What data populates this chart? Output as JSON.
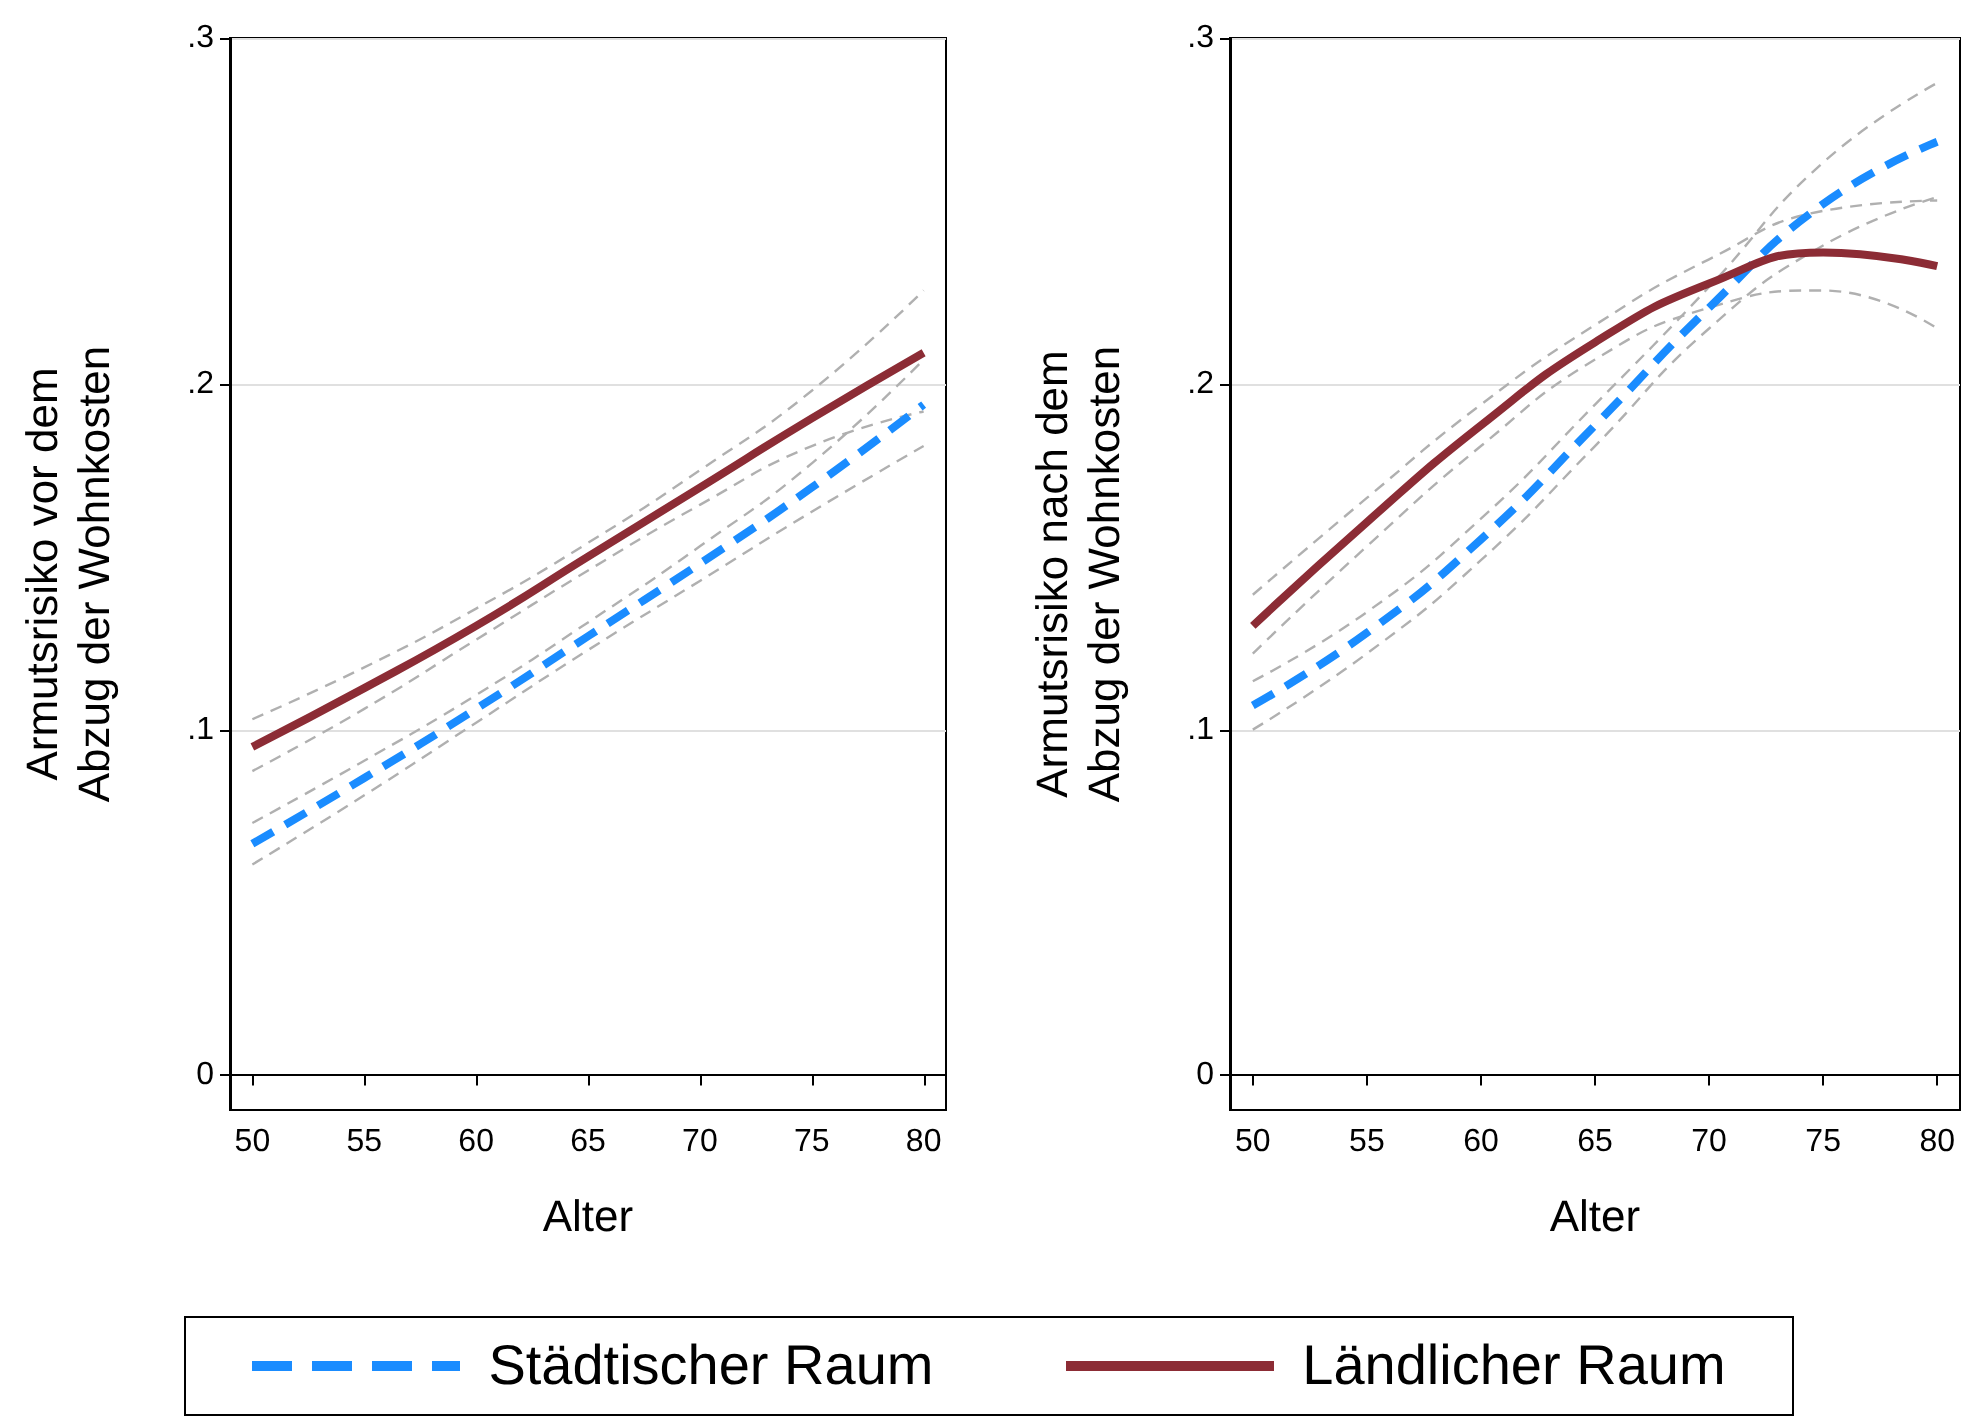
{
  "chart_data": [
    {
      "type": "line",
      "xlabel": "Alter",
      "ylabel": "Armutsrisiko vor dem\nAbzug der Wohnkosten",
      "x": [
        50,
        55,
        60,
        65,
        70,
        75,
        80
      ],
      "xlim": [
        49,
        81
      ],
      "xticks": [
        50,
        55,
        60,
        65,
        70,
        75,
        80
      ],
      "ylim": [
        -0.01,
        0.3
      ],
      "yticks": [
        0,
        {
          "value": 0.1,
          "label": ".1"
        },
        {
          "value": 0.2,
          "label": ".2"
        },
        {
          "value": 0.3,
          "label": ".3"
        }
      ],
      "grid": "y",
      "legend": "bottom",
      "series": [
        {
          "color": "#b0b0b0",
          "line_style": "dashed",
          "values": [
            0.061,
            0.081,
            0.102,
            0.123,
            0.143,
            0.163,
            0.182
          ]
        },
        {
          "color": "#b0b0b0",
          "line_style": "dashed",
          "values": [
            0.073,
            0.091,
            0.11,
            0.131,
            0.153,
            0.177,
            0.207
          ]
        },
        {
          "color": "#b0b0b0",
          "line_style": "dashed",
          "values": [
            0.088,
            0.106,
            0.126,
            0.146,
            0.165,
            0.182,
            0.192
          ]
        },
        {
          "color": "#b0b0b0",
          "line_style": "dashed",
          "values": [
            0.103,
            0.118,
            0.135,
            0.154,
            0.175,
            0.198,
            0.227
          ]
        },
        {
          "name": "Städtischer Raum",
          "color": "#1a8cff",
          "line_style": "dashed",
          "values": [
            0.067,
            0.086,
            0.106,
            0.127,
            0.148,
            0.17,
            0.194
          ]
        },
        {
          "name": "Ländlicher Raum",
          "color": "#8c2c35",
          "line_style": "solid",
          "values": [
            0.095,
            0.112,
            0.13,
            0.15,
            0.17,
            0.19,
            0.209
          ]
        }
      ]
    },
    {
      "type": "line",
      "xlabel": "Alter",
      "ylabel": "Armutsrisiko nach dem\nAbzug der Wohnkosten",
      "x": [
        50,
        55,
        60,
        65,
        70,
        75,
        80
      ],
      "xlim": [
        49,
        81
      ],
      "xticks": [
        50,
        55,
        60,
        65,
        70,
        75,
        80
      ],
      "ylim": [
        -0.01,
        0.3
      ],
      "yticks": [
        0,
        {
          "value": 0.1,
          "label": ".1"
        },
        {
          "value": 0.2,
          "label": ".2"
        },
        {
          "value": 0.3,
          "label": ".3"
        }
      ],
      "grid": "y",
      "legend": "bottom",
      "series": [
        {
          "color": "#b0b0b0",
          "line_style": "dashed",
          "values": [
            0.1,
            0.122,
            0.149,
            0.182,
            0.216,
            0.24,
            0.254
          ]
        },
        {
          "color": "#b0b0b0",
          "line_style": "dashed",
          "values": [
            0.114,
            0.134,
            0.161,
            0.194,
            0.228,
            0.264,
            0.287
          ]
        },
        {
          "color": "#b0b0b0",
          "line_style": "dashed",
          "values": [
            0.122,
            0.153,
            0.182,
            0.207,
            0.222,
            0.227,
            0.216
          ]
        },
        {
          "color": "#b0b0b0",
          "line_style": "dashed",
          "values": [
            0.139,
            0.167,
            0.194,
            0.217,
            0.236,
            0.25,
            0.253
          ]
        },
        {
          "name": "Städtischer Raum",
          "color": "#1a8cff",
          "line_style": "dashed",
          "values": [
            0.107,
            0.128,
            0.155,
            0.188,
            0.222,
            0.252,
            0.27
          ]
        },
        {
          "name": "Ländlicher Raum",
          "color": "#8c2c35",
          "line_style": "solid",
          "values": [
            0.13,
            0.16,
            0.188,
            0.212,
            0.229,
            0.238,
            0.234
          ]
        }
      ]
    }
  ]
}
